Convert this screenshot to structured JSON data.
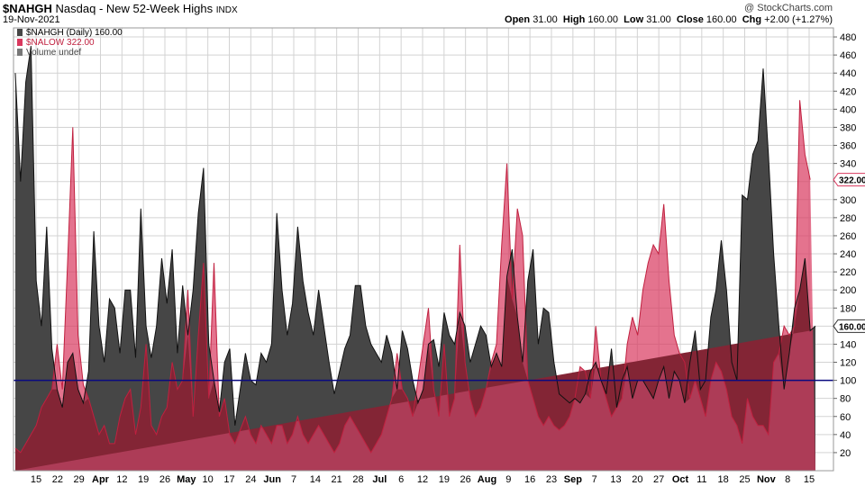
{
  "header": {
    "symbol": "$NAHGH",
    "name": "Nasdaq - New 52-Week Highs",
    "exchange": "INDX",
    "date": "19-Nov-2021",
    "credit": "@ StockCharts.com",
    "quote": {
      "open_label": "Open",
      "open": "31.00",
      "high_label": "High",
      "high": "160.00",
      "low_label": "Low",
      "low": "31.00",
      "close_label": "Close",
      "close": "160.00",
      "chg_label": "Chg",
      "chg": "+2.00 (+1.27%)"
    }
  },
  "legend": {
    "nahgh": "$NAHGH (Daily) 160.00",
    "nalow": "$NALOW 322.00",
    "volume": "Volume undef"
  },
  "colors": {
    "nahgh_fill": "#464646",
    "nahgh_line": "#111111",
    "nalow_fill": "#d9385e",
    "nalow_line": "#c0203f",
    "overlap": "#832535",
    "reference_line": "#0a0a80",
    "grid": "#d3d3d3"
  },
  "chart_data": {
    "type": "area",
    "ylim": [
      0,
      490
    ],
    "yticks": [
      20,
      40,
      60,
      80,
      100,
      120,
      140,
      160,
      180,
      200,
      220,
      240,
      260,
      280,
      300,
      320,
      340,
      360,
      380,
      400,
      420,
      440,
      460,
      480
    ],
    "reference_line": 100,
    "grid": true,
    "legend_position": "top-left",
    "x_tick_labels": [
      "15",
      "22",
      "29",
      "Apr",
      "12",
      "19",
      "26",
      "May",
      "10",
      "17",
      "24",
      "Jun",
      "7",
      "14",
      "21",
      "28",
      "Jul",
      "6",
      "12",
      "19",
      "26",
      "Aug",
      "9",
      "16",
      "23",
      "Sep",
      "7",
      "13",
      "20",
      "27",
      "Oct",
      "11",
      "18",
      "25",
      "Nov",
      "8",
      "15"
    ],
    "x_tick_bold": [
      false,
      false,
      false,
      true,
      false,
      false,
      false,
      true,
      false,
      false,
      false,
      true,
      false,
      false,
      false,
      false,
      true,
      false,
      false,
      false,
      false,
      true,
      false,
      false,
      false,
      true,
      false,
      false,
      false,
      false,
      true,
      false,
      false,
      false,
      true,
      false,
      false
    ],
    "last_labels": {
      "nalow": "322.00",
      "nahgh": "160.00"
    },
    "series": [
      {
        "name": "$NAHGH",
        "values": [
          440,
          320,
          430,
          470,
          210,
          160,
          270,
          135,
          90,
          70,
          120,
          130,
          90,
          75,
          110,
          265,
          160,
          120,
          190,
          180,
          130,
          200,
          200,
          125,
          290,
          160,
          125,
          160,
          235,
          185,
          245,
          130,
          205,
          150,
          200,
          285,
          335,
          140,
          100,
          65,
          120,
          135,
          50,
          90,
          130,
          100,
          95,
          130,
          120,
          140,
          285,
          200,
          150,
          185,
          270,
          210,
          175,
          150,
          200,
          160,
          120,
          85,
          110,
          135,
          150,
          205,
          205,
          160,
          140,
          130,
          120,
          150,
          130,
          90,
          155,
          135,
          100,
          75,
          90,
          140,
          145,
          115,
          175,
          150,
          140,
          175,
          160,
          120,
          140,
          160,
          150,
          115,
          130,
          115,
          215,
          245,
          170,
          120,
          210,
          245,
          140,
          180,
          175,
          120,
          85,
          80,
          75,
          80,
          75,
          85,
          110,
          120,
          100,
          85,
          135,
          70,
          100,
          115,
          80,
          100,
          100,
          90,
          80,
          100,
          115,
          80,
          110,
          100,
          75,
          120,
          155,
          90,
          100,
          170,
          200,
          255,
          200,
          120,
          100,
          305,
          300,
          350,
          365,
          445,
          350,
          240,
          160,
          90,
          130,
          180,
          200,
          235,
          155,
          160
        ]
      },
      {
        "name": "$NALOW",
        "values": [
          25,
          20,
          30,
          40,
          50,
          70,
          80,
          90,
          140,
          90,
          230,
          380,
          150,
          95,
          80,
          60,
          40,
          50,
          30,
          30,
          60,
          80,
          90,
          40,
          70,
          140,
          50,
          40,
          60,
          70,
          120,
          90,
          100,
          200,
          60,
          150,
          230,
          80,
          230,
          60,
          80,
          40,
          30,
          45,
          60,
          40,
          30,
          50,
          40,
          30,
          50,
          50,
          30,
          40,
          60,
          40,
          30,
          40,
          50,
          40,
          30,
          20,
          30,
          50,
          60,
          50,
          40,
          30,
          20,
          30,
          40,
          60,
          80,
          130,
          90,
          80,
          60,
          100,
          140,
          180,
          90,
          60,
          140,
          60,
          80,
          250,
          120,
          80,
          60,
          70,
          90,
          120,
          140,
          250,
          340,
          190,
          290,
          260,
          100,
          80,
          60,
          50,
          60,
          50,
          45,
          50,
          60,
          80,
          115,
          110,
          80,
          160,
          100,
          80,
          60,
          70,
          80,
          140,
          170,
          150,
          200,
          230,
          250,
          240,
          295,
          210,
          150,
          130,
          120,
          80,
          100,
          80,
          60,
          100,
          120,
          110,
          90,
          60,
          50,
          30,
          80,
          60,
          50,
          50,
          40,
          120,
          130,
          160,
          150,
          160,
          410,
          350,
          322
        ]
      }
    ]
  }
}
